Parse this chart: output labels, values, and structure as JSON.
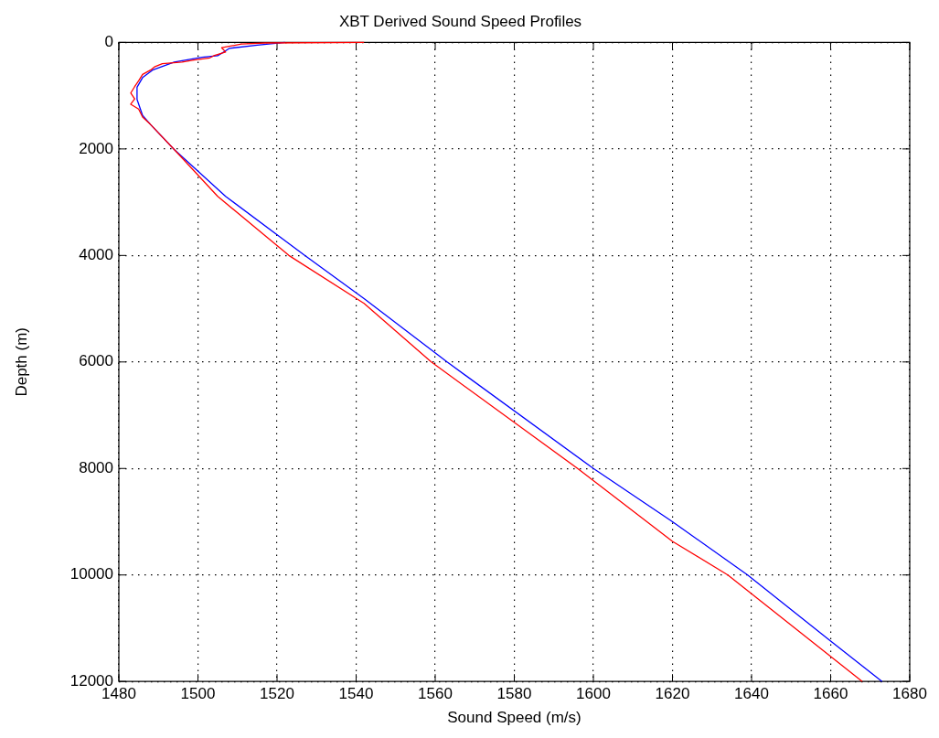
{
  "chart_data": {
    "type": "line",
    "title": "XBT Derived Sound Speed Profiles",
    "xlabel": "Sound Speed (m/s)",
    "ylabel": "Depth (m)",
    "xlim": [
      1480,
      1680
    ],
    "xticks": [
      1480,
      1500,
      1520,
      1540,
      1560,
      1580,
      1600,
      1620,
      1640,
      1660,
      1680
    ],
    "ylim": [
      12000,
      0
    ],
    "yticks": [
      0,
      2000,
      4000,
      6000,
      8000,
      10000,
      12000
    ],
    "grid": true,
    "series": [
      {
        "color": "#ff0000",
        "x": [
          1542,
          1517,
          1511,
          1506,
          1507,
          1504,
          1503,
          1499,
          1496,
          1491,
          1489,
          1488,
          1486,
          1485,
          1484,
          1483,
          1484,
          1483,
          1485,
          1486,
          1488,
          1494,
          1505,
          1523,
          1542,
          1559,
          1596,
          1620,
          1634,
          1668
        ],
        "values": [
          0,
          10,
          30,
          100,
          180,
          250,
          290,
          330,
          370,
          400,
          460,
          520,
          600,
          720,
          830,
          950,
          1060,
          1160,
          1250,
          1400,
          1540,
          2010,
          2890,
          4000,
          4900,
          6000,
          8000,
          9370,
          10000,
          12000
        ]
      },
      {
        "color": "#0000ff",
        "x": [
          1522,
          1515,
          1508,
          1505,
          1501,
          1494,
          1488.5,
          1486,
          1484.6,
          1484.6,
          1486,
          1488,
          1494,
          1507,
          1527,
          1542,
          1563,
          1600,
          1620,
          1639,
          1660,
          1673
        ],
        "values": [
          0,
          50,
          110,
          250,
          280,
          370,
          520,
          660,
          840,
          1070,
          1370,
          1540,
          2010,
          2890,
          4000,
          4810,
          6000,
          8000,
          9000,
          10000,
          11240,
          12000
        ]
      }
    ]
  }
}
